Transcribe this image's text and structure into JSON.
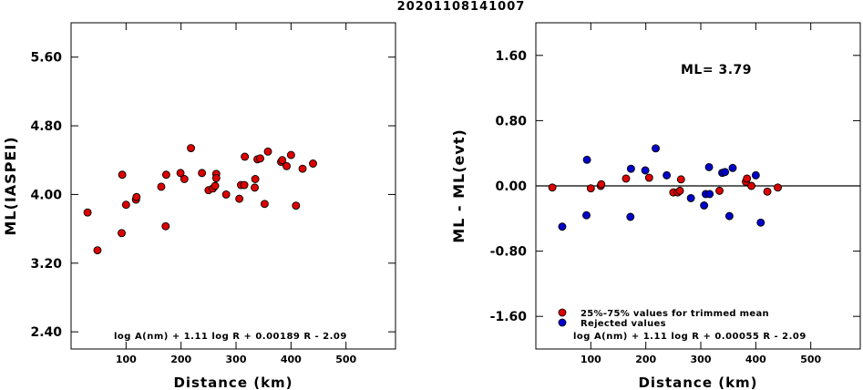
{
  "title": "20201108141007",
  "colors": {
    "red": "#dd0000",
    "blue": "#0000cc",
    "axis": "#000000"
  },
  "chart_data": [
    {
      "type": "scatter",
      "xlabel": "Distance (km)",
      "ylabel": "ML(IASPEI)",
      "xlim": [
        0,
        590
      ],
      "ylim": [
        2.2,
        6.0
      ],
      "xticks": [
        100,
        200,
        300,
        400,
        500
      ],
      "yticks": [
        2.4,
        3.2,
        4.0,
        4.8,
        5.6
      ],
      "ytick_labels": [
        "2.40",
        "3.20",
        "4.00",
        "4.80",
        "5.60"
      ],
      "xtick_labels": [
        "100",
        "200",
        "300",
        "400",
        "500"
      ],
      "annotation": "log A(nm) + 1.11 log R + 0.00189 R - 2.09",
      "series": [
        {
          "color": "red",
          "points": [
            [
              30,
              3.79
            ],
            [
              48,
              3.35
            ],
            [
              92,
              3.55
            ],
            [
              93,
              4.23
            ],
            [
              100,
              3.88
            ],
            [
              118,
              3.94
            ],
            [
              119,
              3.97
            ],
            [
              164,
              4.09
            ],
            [
              172,
              3.63
            ],
            [
              173,
              4.23
            ],
            [
              199,
              4.25
            ],
            [
              206,
              4.18
            ],
            [
              218,
              4.54
            ],
            [
              238,
              4.25
            ],
            [
              250,
              4.05
            ],
            [
              258,
              4.07
            ],
            [
              262,
              4.1
            ],
            [
              264,
              4.24
            ],
            [
              264,
              4.19
            ],
            [
              282,
              4.0
            ],
            [
              306,
              3.95
            ],
            [
              309,
              4.11
            ],
            [
              315,
              4.11
            ],
            [
              316,
              4.44
            ],
            [
              334,
              4.08
            ],
            [
              335,
              4.18
            ],
            [
              339,
              4.41
            ],
            [
              344,
              4.42
            ],
            [
              352,
              3.89
            ],
            [
              358,
              4.5
            ],
            [
              382,
              4.38
            ],
            [
              384,
              4.4
            ],
            [
              392,
              4.33
            ],
            [
              400,
              4.46
            ],
            [
              409,
              3.87
            ],
            [
              421,
              4.3
            ],
            [
              440,
              4.36
            ]
          ]
        }
      ]
    },
    {
      "type": "scatter",
      "xlabel": "Distance (km)",
      "ylabel": "ML - ML(evt)",
      "xlim": [
        0,
        590
      ],
      "ylim": [
        -2.0,
        2.0
      ],
      "xticks": [
        100,
        200,
        300,
        400,
        500
      ],
      "yticks": [
        -1.6,
        -0.8,
        0.0,
        0.8,
        1.6
      ],
      "ytick_labels": [
        "-1.60",
        "-0.80",
        "0.00",
        "0.80",
        "1.60"
      ],
      "xtick_labels": [
        "100",
        "200",
        "300",
        "400",
        "500"
      ],
      "ml_label": "ML= 3.79",
      "reference_line": 0.0,
      "annotation": "log A(nm) + 1.11 log R + 0.00055 R - 2.09",
      "legend": [
        {
          "color": "red",
          "label": "25%-75% values for trimmed mean"
        },
        {
          "color": "blue",
          "label": "Rejected values"
        }
      ],
      "series": [
        {
          "color": "red",
          "points": [
            [
              30,
              -0.02
            ],
            [
              100,
              -0.03
            ],
            [
              118,
              0.0
            ],
            [
              119,
              0.02
            ],
            [
              164,
              0.09
            ],
            [
              206,
              0.1
            ],
            [
              250,
              -0.08
            ],
            [
              258,
              -0.08
            ],
            [
              262,
              -0.06
            ],
            [
              264,
              0.08
            ],
            [
              334,
              -0.06
            ],
            [
              382,
              0.05
            ],
            [
              384,
              0.09
            ],
            [
              392,
              0.0
            ],
            [
              421,
              -0.07
            ],
            [
              440,
              -0.02
            ]
          ]
        },
        {
          "color": "blue",
          "points": [
            [
              48,
              -0.5
            ],
            [
              92,
              -0.36
            ],
            [
              93,
              0.32
            ],
            [
              172,
              -0.38
            ],
            [
              173,
              0.21
            ],
            [
              199,
              0.19
            ],
            [
              218,
              0.46
            ],
            [
              238,
              0.13
            ],
            [
              282,
              -0.15
            ],
            [
              306,
              -0.24
            ],
            [
              309,
              -0.1
            ],
            [
              315,
              0.23
            ],
            [
              316,
              -0.1
            ],
            [
              339,
              0.16
            ],
            [
              344,
              0.17
            ],
            [
              352,
              -0.37
            ],
            [
              358,
              0.22
            ],
            [
              400,
              0.13
            ],
            [
              409,
              -0.45
            ]
          ]
        }
      ]
    }
  ]
}
